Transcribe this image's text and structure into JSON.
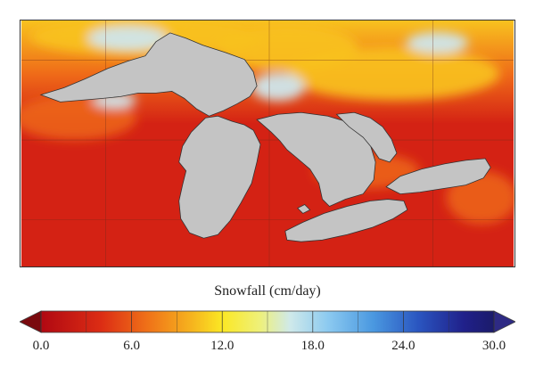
{
  "colorbar": {
    "title": "Snowfall (cm/day)",
    "min": 0,
    "max": 30,
    "ticks": [
      "0.0",
      "6.0",
      "12.0",
      "18.0",
      "24.0",
      "30.0"
    ],
    "tick_values": [
      0,
      6,
      12,
      18,
      24,
      30
    ],
    "stops": [
      {
        "value": 0,
        "color": "#b00812"
      },
      {
        "value": 4,
        "color": "#dc2d14"
      },
      {
        "value": 7,
        "color": "#ef7018"
      },
      {
        "value": 10,
        "color": "#f6b41e"
      },
      {
        "value": 12,
        "color": "#fbe824"
      },
      {
        "value": 14.5,
        "color": "#eef07a"
      },
      {
        "value": 16.5,
        "color": "#cfe9ea"
      },
      {
        "value": 19,
        "color": "#8ccaf0"
      },
      {
        "value": 22,
        "color": "#4a98e0"
      },
      {
        "value": 25,
        "color": "#2a55c0"
      },
      {
        "value": 28,
        "color": "#20208a"
      },
      {
        "value": 30,
        "color": "#1b1b6a"
      }
    ],
    "under_color": "#7a0a0e",
    "over_color": "#2e2a84"
  },
  "colors": {
    "land_low": "#d42214",
    "land_mid": "#ef6a18",
    "land_high": "#f8c21f",
    "snow_light": "#cfe6ec",
    "lakes": "#c4c4c4",
    "outline": "#333333"
  }
}
